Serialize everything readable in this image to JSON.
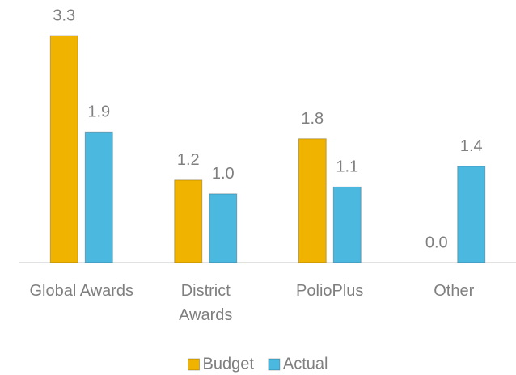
{
  "chart_data": {
    "type": "bar",
    "categories": [
      "Global Awards",
      "District Awards",
      "PolioPlus",
      "Other"
    ],
    "series": [
      {
        "name": "Budget",
        "color": "#f0b400",
        "values": [
          3.3,
          1.2,
          1.8,
          0
        ],
        "value_labels": [
          "3.3",
          "1.2",
          "1.8",
          "0.0"
        ]
      },
      {
        "name": "Actual",
        "color": "#4bb8e0",
        "values": [
          1.9,
          1.0,
          1.1,
          1.4
        ],
        "value_labels": [
          "1.9",
          "1.0",
          "1.1",
          "1.4"
        ]
      }
    ],
    "ylim": [
      0,
      3.5
    ],
    "legend": "bottom"
  }
}
